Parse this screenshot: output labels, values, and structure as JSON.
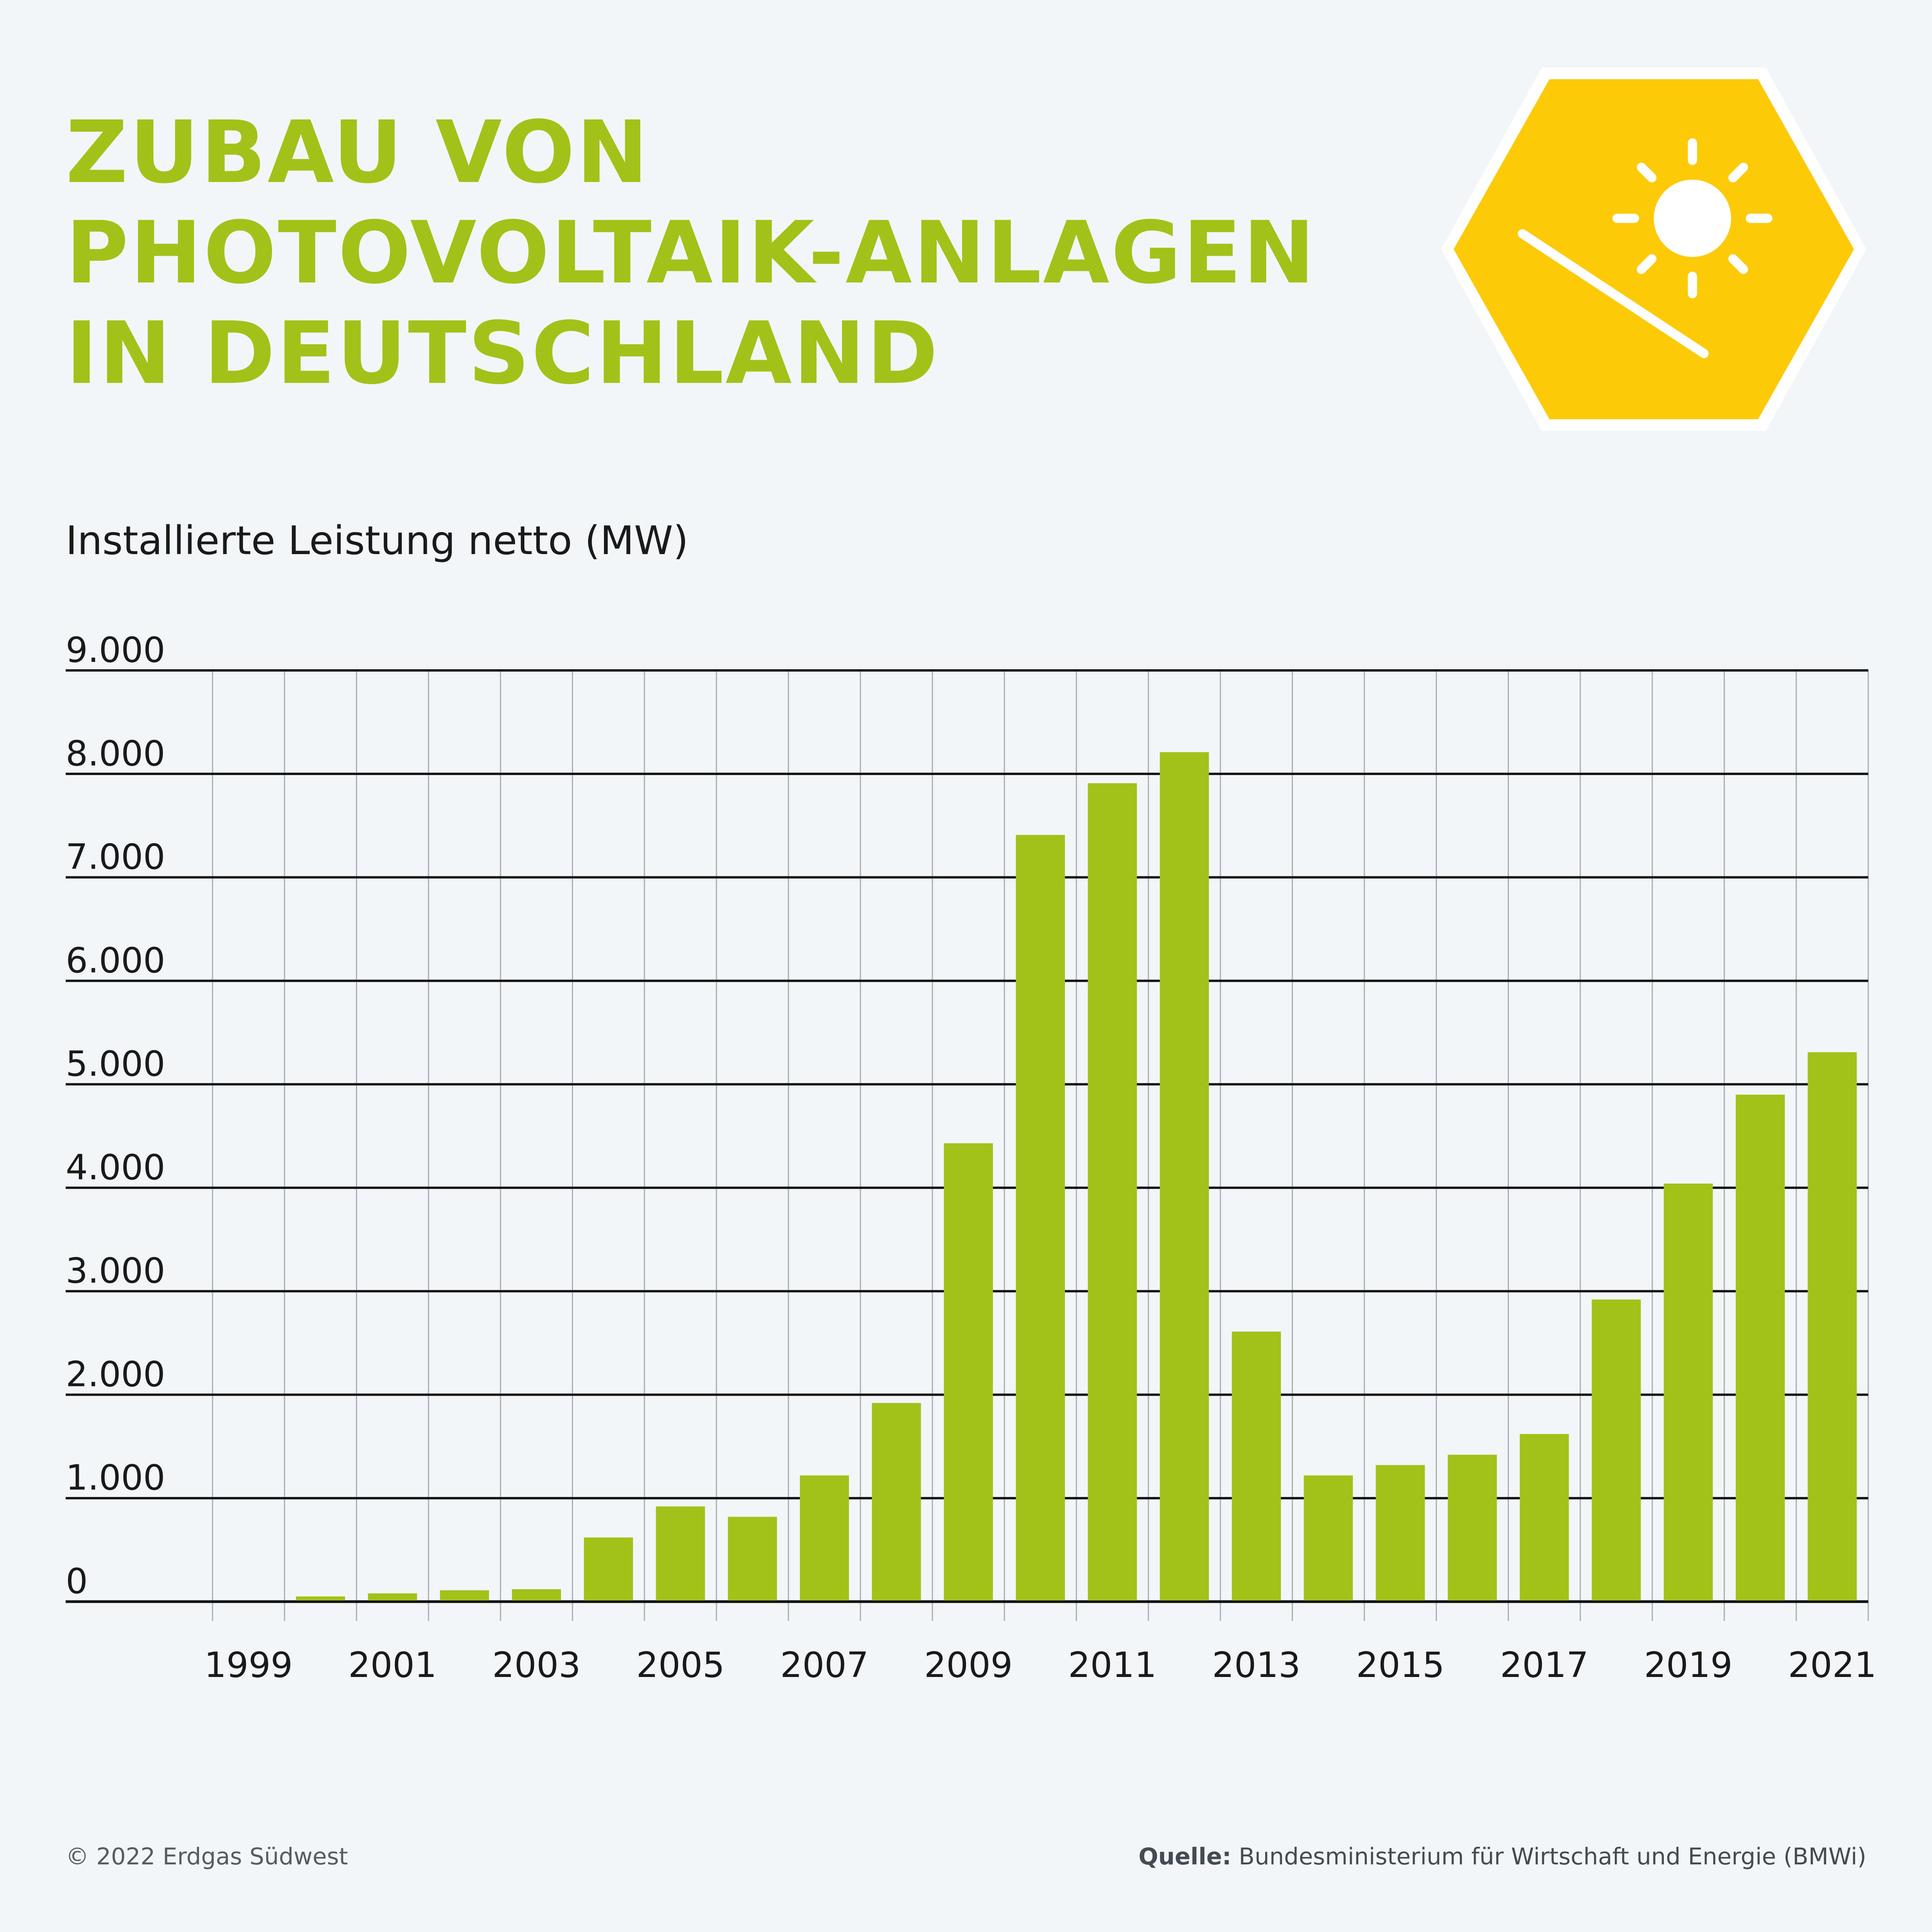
{
  "title": {
    "line1": "ZUBAU VON",
    "line2": "PHOTOVOLTAIK-ANLAGEN",
    "line3": "IN DEUTSCHLAND"
  },
  "footer": {
    "copyright": "© 2022 Erdgas Südwest",
    "source_label": "Quelle:",
    "source_text": " Bundesministerium für Wirtschaft und Energie (BMWi)"
  },
  "colors": {
    "accent": "#a2c219",
    "bar": "#a2c219",
    "icon_fill": "#fdca08",
    "background": "#f2f6f9"
  },
  "icon": "sun-solar-panel-icon",
  "chart_data": {
    "type": "bar",
    "title": "",
    "ylabel": "Installierte Leistung netto (MW)",
    "xlabel": "",
    "ylim": [
      0,
      9000
    ],
    "yticks": [
      0,
      1000,
      2000,
      3000,
      4000,
      5000,
      6000,
      7000,
      8000,
      9000
    ],
    "ytick_labels": [
      "0",
      "1.000",
      "2.000",
      "3.000",
      "4.000",
      "5.000",
      "6.000",
      "7.000",
      "8.000",
      "9.000"
    ],
    "grid": true,
    "categories": [
      "1999",
      "2000",
      "2001",
      "2002",
      "2003",
      "2004",
      "2005",
      "2006",
      "2007",
      "2008",
      "2009",
      "2010",
      "2011",
      "2012",
      "2013",
      "2014",
      "2015",
      "2016",
      "2017",
      "2018",
      "2019",
      "2020",
      "2021"
    ],
    "shown_xtick_labels": [
      "1999",
      "2001",
      "2003",
      "2005",
      "2007",
      "2009",
      "2011",
      "2013",
      "2015",
      "2017",
      "2019",
      "2021"
    ],
    "values": [
      0,
      50,
      80,
      110,
      120,
      620,
      920,
      820,
      1220,
      1920,
      4430,
      7410,
      7910,
      8210,
      2610,
      1220,
      1320,
      1420,
      1620,
      2920,
      4040,
      4900,
      5310
    ]
  }
}
